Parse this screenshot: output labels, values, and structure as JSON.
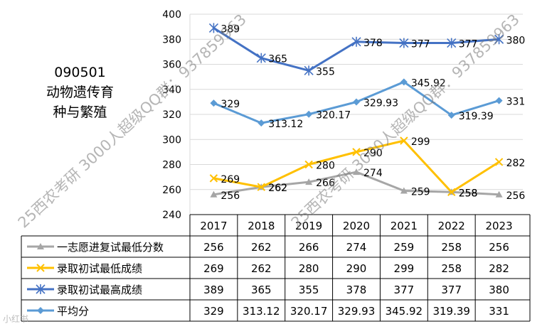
{
  "title_lines": "090501\n动物遗传育\n种与繁殖",
  "watermarks": [
    "25西农考研 3000人超级QQ群：937859963",
    "25西农考研 3000人超级QQ群：937859963"
  ],
  "corner_mark": "小红书",
  "colors": {
    "s1": "#A6A6A6",
    "s2": "#FFC000",
    "s3": "#4472C4",
    "s4": "#5B9BD5",
    "grid": "#D9D9D9",
    "border": "#000000"
  },
  "chart_data": {
    "type": "line",
    "categories": [
      "2017",
      "2018",
      "2019",
      "2020",
      "2021",
      "2022",
      "2023"
    ],
    "ylim": [
      240,
      400
    ],
    "yticks": [
      240,
      260,
      280,
      300,
      320,
      340,
      360,
      380,
      400
    ],
    "grid": true,
    "legend_placement": "data-table",
    "series": [
      {
        "name": "一志愿进复试最低分数",
        "values": [
          256,
          262,
          266,
          274,
          259,
          258,
          256
        ],
        "labels": [
          "256",
          "262",
          "266",
          "274",
          "259",
          "258",
          "256"
        ],
        "color": "#A6A6A6",
        "marker": "triangle"
      },
      {
        "name": "录取初试最低成绩",
        "values": [
          269,
          262,
          280,
          290,
          299,
          258,
          282
        ],
        "labels": [
          "269",
          "262",
          "280",
          "290",
          "299",
          "258",
          "282"
        ],
        "color": "#FFC000",
        "marker": "x"
      },
      {
        "name": "录取初试最高成绩",
        "values": [
          389,
          365,
          355,
          378,
          377,
          377,
          380
        ],
        "labels": [
          "389",
          "365",
          "355",
          "378",
          "377",
          "377",
          "380"
        ],
        "color": "#4472C4",
        "marker": "star"
      },
      {
        "name": "平均分",
        "values": [
          329,
          313.12,
          320.17,
          329.93,
          345.92,
          319.39,
          331
        ],
        "labels": [
          "329",
          "313.12",
          "320.17",
          "329.93",
          "345.92",
          "319.39",
          "331"
        ],
        "color": "#5B9BD5",
        "marker": "diamond"
      }
    ]
  }
}
